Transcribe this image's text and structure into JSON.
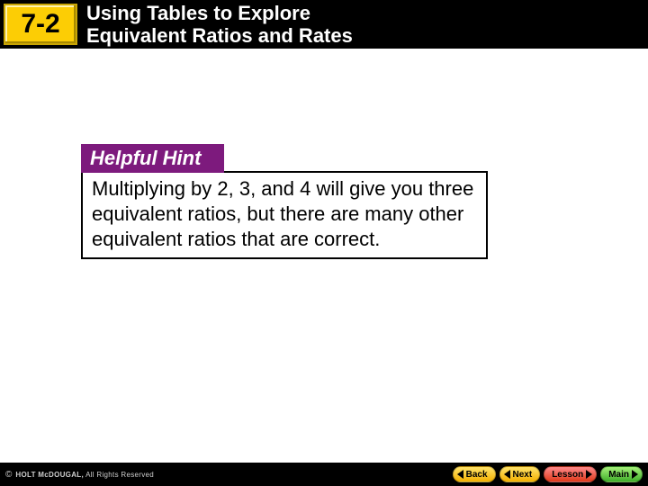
{
  "header": {
    "lesson_number": "7-2",
    "title_line1": "Using Tables to Explore",
    "title_line2": "Equivalent Ratios and Rates",
    "badge_bg": "#fccd05",
    "badge_border": "#c9a504"
  },
  "hint": {
    "label": "Helpful Hint",
    "body": "Multiplying by 2, 3, and 4 will give you three equivalent ratios, but there are many other equivalent ratios that are correct.",
    "tab_bg": "#7d1a7d",
    "tab_text_color": "#ffffff",
    "border_color": "#000000"
  },
  "footer": {
    "copyright_symbol": "©",
    "brand": "HOLT McDOUGAL,",
    "rights": "All Rights Reserved",
    "buttons": {
      "back": "Back",
      "next": "Next",
      "lesson": "Lesson",
      "main": "Main"
    }
  }
}
